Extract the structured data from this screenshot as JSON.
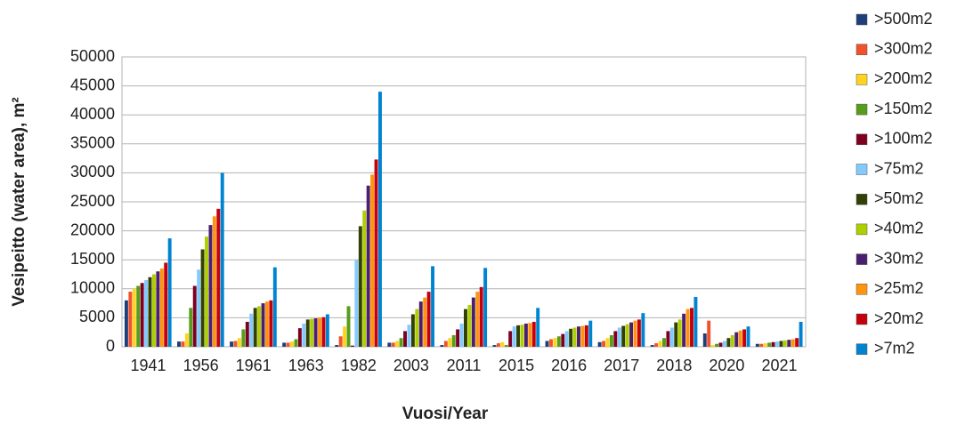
{
  "chart_data": {
    "type": "bar",
    "x_label": "Vuosi/Year",
    "y_label": "Vesipeitto (water area), m²",
    "categories": [
      "1941",
      "1956",
      "1961",
      "1963",
      "1982",
      "2003",
      "2011",
      "2015",
      "2016",
      "2017",
      "2018",
      "2020",
      "2021"
    ],
    "series": [
      {
        "name": ">500m2",
        "color": "#1f3f7a",
        "values": [
          8000,
          900,
          900,
          700,
          300,
          700,
          300,
          300,
          1000,
          800,
          300,
          2300,
          500
        ]
      },
      {
        "name": ">300m2",
        "color": "#f0522b",
        "values": [
          9500,
          900,
          1000,
          700,
          1800,
          700,
          1000,
          600,
          1300,
          1000,
          600,
          4500,
          500
        ]
      },
      {
        "name": ">200m2",
        "color": "#ffd320",
        "values": [
          10000,
          2300,
          1500,
          900,
          3500,
          1000,
          1500,
          800,
          1500,
          1500,
          1000,
          300,
          600
        ]
      },
      {
        "name": ">150m2",
        "color": "#579d1c",
        "values": [
          10500,
          6700,
          3000,
          1300,
          7000,
          1500,
          2000,
          300,
          1800,
          2000,
          1500,
          500,
          700
        ]
      },
      {
        "name": ">100m2",
        "color": "#7e0021",
        "values": [
          11000,
          10500,
          4300,
          3200,
          200,
          2700,
          3000,
          2700,
          2200,
          2700,
          2700,
          700,
          800
        ]
      },
      {
        "name": ">75m2",
        "color": "#83caff",
        "values": [
          11500,
          13300,
          5700,
          4000,
          15000,
          3800,
          4000,
          3500,
          2700,
          3300,
          3300,
          1000,
          900
        ]
      },
      {
        "name": ">50m2",
        "color": "#314004",
        "values": [
          12000,
          16800,
          6700,
          4700,
          20800,
          5600,
          6500,
          3700,
          3100,
          3600,
          4200,
          1500,
          1000
        ]
      },
      {
        "name": ">40m2",
        "color": "#aecf00",
        "values": [
          12500,
          19000,
          7000,
          4800,
          23500,
          6500,
          7200,
          3800,
          3300,
          3900,
          4700,
          2000,
          1100
        ]
      },
      {
        "name": ">30m2",
        "color": "#4b1f6f",
        "values": [
          13000,
          21000,
          7500,
          4900,
          27800,
          7800,
          8500,
          4000,
          3500,
          4200,
          5700,
          2500,
          1200
        ]
      },
      {
        "name": ">25m2",
        "color": "#ff950e",
        "values": [
          13500,
          22500,
          7800,
          5000,
          29700,
          8500,
          9500,
          4100,
          3600,
          4500,
          6500,
          2800,
          1300
        ]
      },
      {
        "name": ">20m2",
        "color": "#c5000b",
        "values": [
          14500,
          23800,
          8000,
          5100,
          32300,
          9500,
          10300,
          4300,
          3700,
          4700,
          6700,
          3000,
          1500
        ]
      },
      {
        "name": ">7m2",
        "color": "#0084d1",
        "values": [
          18700,
          30000,
          13700,
          5600,
          44000,
          13900,
          13600,
          6700,
          4500,
          5800,
          8600,
          3500,
          4300
        ]
      }
    ],
    "ylim": [
      0,
      50000
    ],
    "yticks": [
      0,
      5000,
      10000,
      15000,
      20000,
      25000,
      30000,
      35000,
      40000,
      45000,
      50000
    ],
    "grid": true
  }
}
